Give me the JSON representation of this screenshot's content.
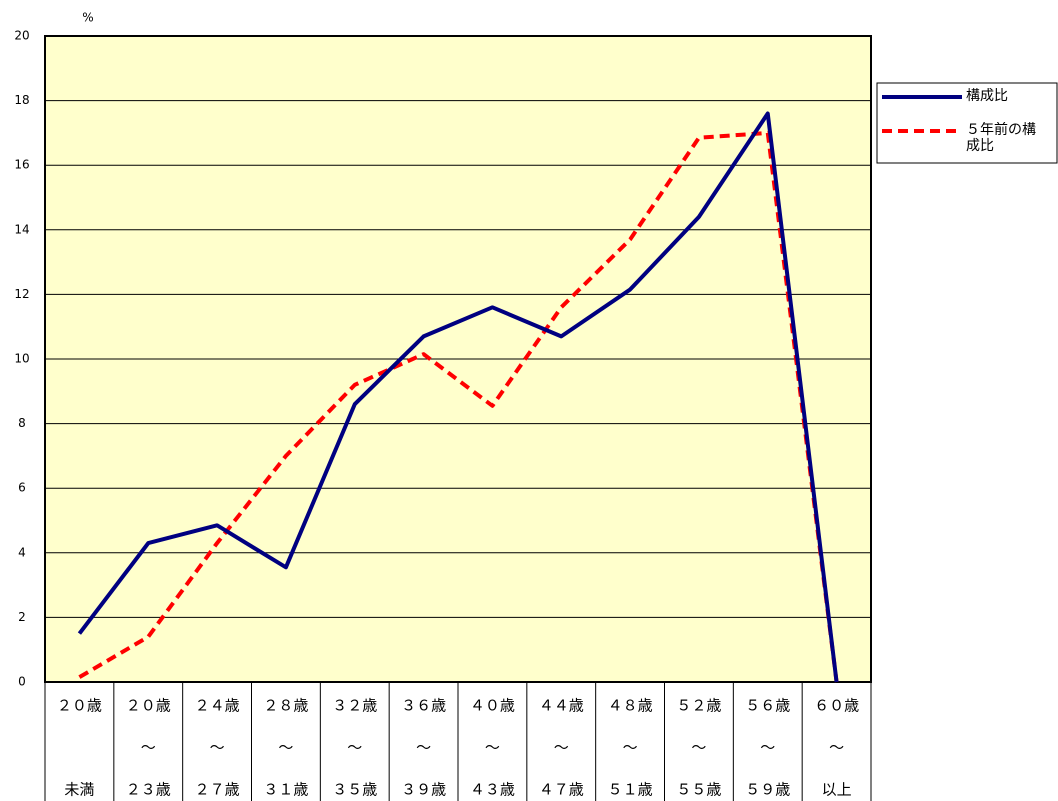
{
  "chart_data": {
    "type": "line",
    "y_unit": "%",
    "categories": [
      [
        "２０歳",
        "未満"
      ],
      [
        "２０歳",
        "～",
        "２３歳"
      ],
      [
        "２４歳",
        "～",
        "２７歳"
      ],
      [
        "２８歳",
        "～",
        "３１歳"
      ],
      [
        "３２歳",
        "～",
        "３５歳"
      ],
      [
        "３６歳",
        "～",
        "３９歳"
      ],
      [
        "４０歳",
        "～",
        "４３歳"
      ],
      [
        "４４歳",
        "～",
        "４７歳"
      ],
      [
        "４８歳",
        "～",
        "５１歳"
      ],
      [
        "５２歳",
        "～",
        "５５歳"
      ],
      [
        "５６歳",
        "～",
        "５９歳"
      ],
      [
        "６０歳",
        "～",
        "以上"
      ]
    ],
    "series": [
      {
        "name": "構成比",
        "color": "#000080",
        "dash": false,
        "values": [
          1.5,
          4.3,
          4.85,
          3.55,
          8.6,
          10.7,
          11.6,
          10.7,
          12.15,
          14.4,
          17.6,
          0
        ]
      },
      {
        "name": "５年前の構成比",
        "color": "#ff0000",
        "dash": true,
        "values": [
          0.15,
          1.4,
          4.3,
          7.0,
          9.2,
          10.15,
          8.55,
          11.6,
          13.7,
          16.85,
          17.0,
          0
        ]
      }
    ],
    "ylim": [
      0,
      20
    ],
    "yticks": [
      0,
      2,
      4,
      6,
      8,
      10,
      12,
      14,
      16,
      18,
      20
    ],
    "grid": true,
    "background": "#ffffcc",
    "legend": "right"
  }
}
